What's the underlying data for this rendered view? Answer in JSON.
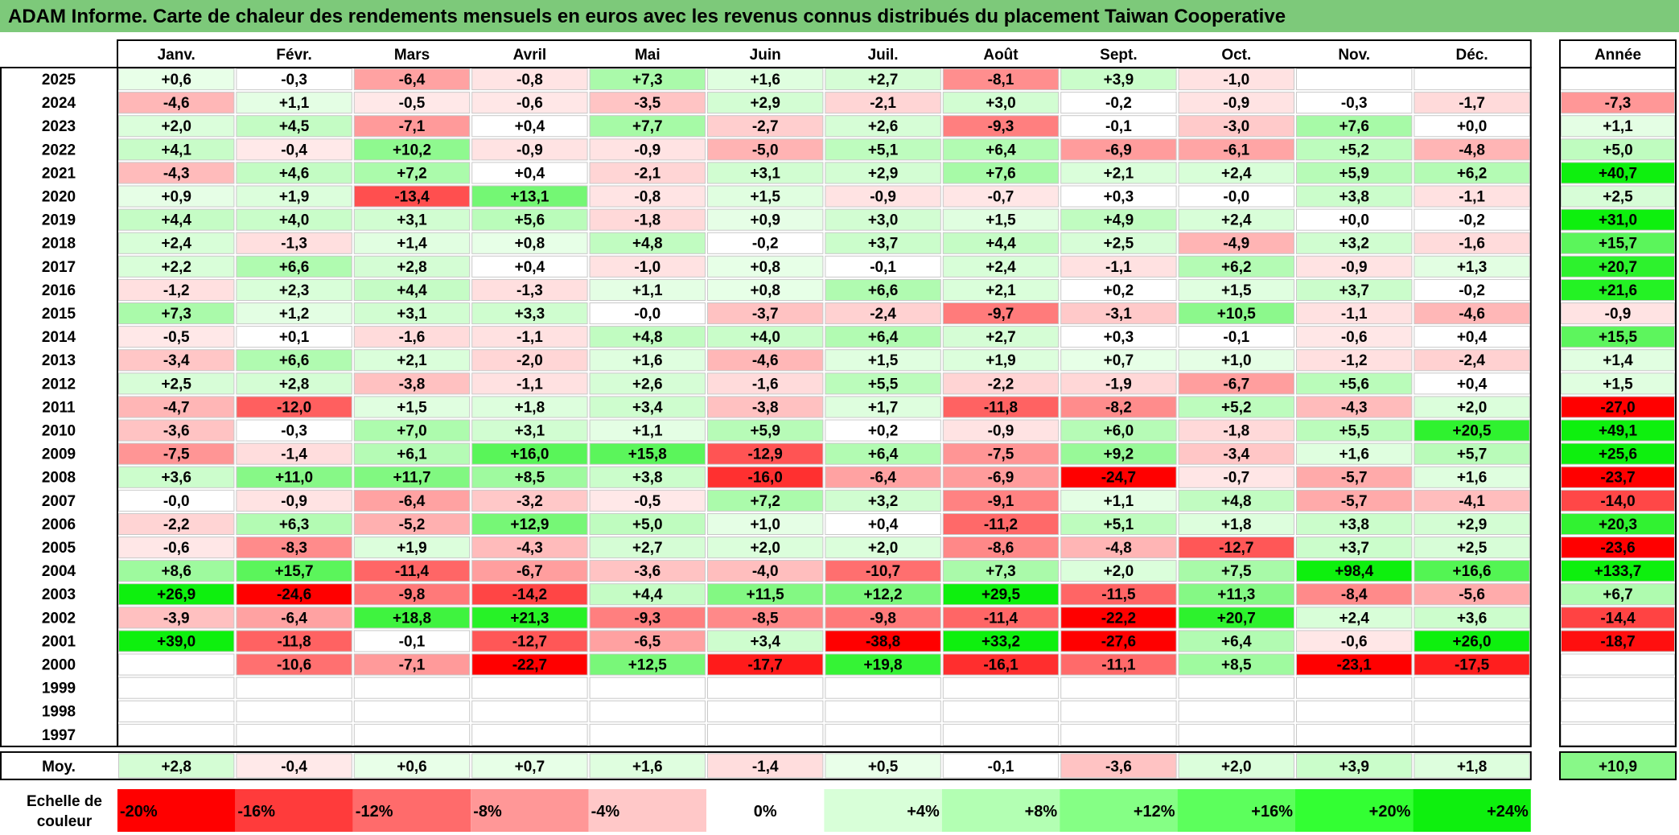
{
  "title": "ADAM Informe. Carte de chaleur des rendements mensuels en euros avec les revenus connus distribués du placement Taiwan Cooperative",
  "chart_data": {
    "type": "heatmap",
    "title": "ADAM Informe. Carte de chaleur des rendements mensuels en euros avec les revenus connus distribués du placement Taiwan Cooperative",
    "columns": [
      "Janv.",
      "Févr.",
      "Mars",
      "Avril",
      "Mai",
      "Juin",
      "Juil.",
      "Août",
      "Sept.",
      "Oct.",
      "Nov.",
      "Déc."
    ],
    "year_column_label": "Année",
    "rows": [
      {
        "year": "2025",
        "values": [
          "+0,6",
          "-0,3",
          "-6,4",
          "-0,8",
          "+7,3",
          "+1,6",
          "+2,7",
          "-8,1",
          "+3,9",
          "-1,0",
          "",
          ""
        ],
        "annual": ""
      },
      {
        "year": "2024",
        "values": [
          "-4,6",
          "+1,1",
          "-0,5",
          "-0,6",
          "-3,5",
          "+2,9",
          "-2,1",
          "+3,0",
          "-0,2",
          "-0,9",
          "-0,3",
          "-1,7"
        ],
        "annual": "-7,3"
      },
      {
        "year": "2023",
        "values": [
          "+2,0",
          "+4,5",
          "-7,1",
          "+0,4",
          "+7,7",
          "-2,7",
          "+2,6",
          "-9,3",
          "-0,1",
          "-3,0",
          "+7,6",
          "+0,0"
        ],
        "annual": "+1,1"
      },
      {
        "year": "2022",
        "values": [
          "+4,1",
          "-0,4",
          "+10,2",
          "-0,9",
          "-0,9",
          "-5,0",
          "+5,1",
          "+6,4",
          "-6,9",
          "-6,1",
          "+5,2",
          "-4,8"
        ],
        "annual": "+5,0"
      },
      {
        "year": "2021",
        "values": [
          "-4,3",
          "+4,6",
          "+7,2",
          "+0,4",
          "-2,1",
          "+3,1",
          "+2,9",
          "+7,6",
          "+2,1",
          "+2,4",
          "+5,9",
          "+6,2"
        ],
        "annual": "+40,7"
      },
      {
        "year": "2020",
        "values": [
          "+0,9",
          "+1,9",
          "-13,4",
          "+13,1",
          "-0,8",
          "+1,5",
          "-0,9",
          "-0,7",
          "+0,3",
          "-0,0",
          "+3,8",
          "-1,1"
        ],
        "annual": "+2,5"
      },
      {
        "year": "2019",
        "values": [
          "+4,4",
          "+4,0",
          "+3,1",
          "+5,6",
          "-1,8",
          "+0,9",
          "+3,0",
          "+1,5",
          "+4,9",
          "+2,4",
          "+0,0",
          "-0,2"
        ],
        "annual": "+31,0"
      },
      {
        "year": "2018",
        "values": [
          "+2,4",
          "-1,3",
          "+1,4",
          "+0,8",
          "+4,8",
          "-0,2",
          "+3,7",
          "+4,4",
          "+2,5",
          "-4,9",
          "+3,2",
          "-1,6"
        ],
        "annual": "+15,7"
      },
      {
        "year": "2017",
        "values": [
          "+2,2",
          "+6,6",
          "+2,8",
          "+0,4",
          "-1,0",
          "+0,8",
          "-0,1",
          "+2,4",
          "-1,1",
          "+6,2",
          "-0,9",
          "+1,3"
        ],
        "annual": "+20,7"
      },
      {
        "year": "2016",
        "values": [
          "-1,2",
          "+2,3",
          "+4,4",
          "-1,3",
          "+1,1",
          "+0,8",
          "+6,6",
          "+2,1",
          "+0,2",
          "+1,5",
          "+3,7",
          "-0,2"
        ],
        "annual": "+21,6"
      },
      {
        "year": "2015",
        "values": [
          "+7,3",
          "+1,2",
          "+3,1",
          "+3,3",
          "-0,0",
          "-3,7",
          "-2,4",
          "-9,7",
          "-3,1",
          "+10,5",
          "-1,1",
          "-4,6"
        ],
        "annual": "-0,9"
      },
      {
        "year": "2014",
        "values": [
          "-0,5",
          "+0,1",
          "-1,6",
          "-1,1",
          "+4,8",
          "+4,0",
          "+6,4",
          "+2,7",
          "+0,3",
          "-0,1",
          "-0,6",
          "+0,4"
        ],
        "annual": "+15,5"
      },
      {
        "year": "2013",
        "values": [
          "-3,4",
          "+6,6",
          "+2,1",
          "-2,0",
          "+1,6",
          "-4,6",
          "+1,5",
          "+1,9",
          "+0,7",
          "+1,0",
          "-1,2",
          "-2,4"
        ],
        "annual": "+1,4"
      },
      {
        "year": "2012",
        "values": [
          "+2,5",
          "+2,8",
          "-3,8",
          "-1,1",
          "+2,6",
          "-1,6",
          "+5,5",
          "-2,2",
          "-1,9",
          "-6,7",
          "+5,6",
          "+0,4"
        ],
        "annual": "+1,5"
      },
      {
        "year": "2011",
        "values": [
          "-4,7",
          "-12,0",
          "+1,5",
          "+1,8",
          "+3,4",
          "-3,8",
          "+1,7",
          "-11,8",
          "-8,2",
          "+5,2",
          "-4,3",
          "+2,0"
        ],
        "annual": "-27,0"
      },
      {
        "year": "2010",
        "values": [
          "-3,6",
          "-0,3",
          "+7,0",
          "+3,1",
          "+1,1",
          "+5,9",
          "+0,2",
          "-0,9",
          "+6,0",
          "-1,8",
          "+5,5",
          "+20,5"
        ],
        "annual": "+49,1"
      },
      {
        "year": "2009",
        "values": [
          "-7,5",
          "-1,4",
          "+6,1",
          "+16,0",
          "+15,8",
          "-12,9",
          "+6,4",
          "-7,5",
          "+9,2",
          "-3,4",
          "+1,6",
          "+5,7"
        ],
        "annual": "+25,6"
      },
      {
        "year": "2008",
        "values": [
          "+3,6",
          "+11,0",
          "+11,7",
          "+8,5",
          "+3,8",
          "-16,0",
          "-6,4",
          "-6,9",
          "-24,7",
          "-0,7",
          "-5,7",
          "+1,6"
        ],
        "annual": "-23,7"
      },
      {
        "year": "2007",
        "values": [
          "-0,0",
          "-0,9",
          "-6,4",
          "-3,2",
          "-0,5",
          "+7,2",
          "+3,2",
          "-9,1",
          "+1,1",
          "+4,8",
          "-5,7",
          "-4,1"
        ],
        "annual": "-14,0"
      },
      {
        "year": "2006",
        "values": [
          "-2,2",
          "+6,3",
          "-5,2",
          "+12,9",
          "+5,0",
          "+1,0",
          "+0,4",
          "-11,2",
          "+5,1",
          "+1,8",
          "+3,8",
          "+2,9"
        ],
        "annual": "+20,3"
      },
      {
        "year": "2005",
        "values": [
          "-0,6",
          "-8,3",
          "+1,9",
          "-4,3",
          "+2,7",
          "+2,0",
          "+2,0",
          "-8,6",
          "-4,8",
          "-12,7",
          "+3,7",
          "+2,5"
        ],
        "annual": "-23,6"
      },
      {
        "year": "2004",
        "values": [
          "+8,6",
          "+15,7",
          "-11,4",
          "-6,7",
          "-3,6",
          "-4,0",
          "-10,7",
          "+7,3",
          "+2,0",
          "+7,5",
          "+98,4",
          "+16,6"
        ],
        "annual": "+133,7"
      },
      {
        "year": "2003",
        "values": [
          "+26,9",
          "-24,6",
          "-9,8",
          "-14,2",
          "+4,4",
          "+11,5",
          "+12,2",
          "+29,5",
          "-11,5",
          "+11,3",
          "-8,4",
          "-5,6"
        ],
        "annual": "+6,7"
      },
      {
        "year": "2002",
        "values": [
          "-3,9",
          "-6,4",
          "+18,8",
          "+21,3",
          "-9,3",
          "-8,5",
          "-9,8",
          "-11,4",
          "-22,2",
          "+20,7",
          "+2,4",
          "+3,6"
        ],
        "annual": "-14,4"
      },
      {
        "year": "2001",
        "values": [
          "+39,0",
          "-11,8",
          "-0,1",
          "-12,7",
          "-6,5",
          "+3,4",
          "-38,8",
          "+33,2",
          "-27,6",
          "+6,4",
          "-0,6",
          "+26,0"
        ],
        "annual": "-18,7"
      },
      {
        "year": "2000",
        "values": [
          "",
          "-10,6",
          "-7,1",
          "-22,7",
          "+12,5",
          "-17,7",
          "+19,8",
          "-16,1",
          "-11,1",
          "+8,5",
          "-23,1",
          "-17,5"
        ],
        "annual": ""
      },
      {
        "year": "1999",
        "values": [
          "",
          "",
          "",
          "",
          "",
          "",
          "",
          "",
          "",
          "",
          "",
          ""
        ],
        "annual": ""
      },
      {
        "year": "1998",
        "values": [
          "",
          "",
          "",
          "",
          "",
          "",
          "",
          "",
          "",
          "",
          "",
          ""
        ],
        "annual": ""
      },
      {
        "year": "1997",
        "values": [
          "",
          "",
          "",
          "",
          "",
          "",
          "",
          "",
          "",
          "",
          "",
          ""
        ],
        "annual": ""
      }
    ],
    "average": {
      "label": "Moy.",
      "values": [
        "+2,8",
        "-0,4",
        "+0,6",
        "+0,7",
        "+1,6",
        "-1,4",
        "+0,5",
        "-0,1",
        "-3,6",
        "+2,0",
        "+3,9",
        "+1,8"
      ],
      "annual": "+10,9"
    },
    "color_scale": {
      "label_line1": "Echelle de",
      "label_line2": "couleur",
      "steps": [
        {
          "label": "-20%",
          "value": -20,
          "color": "#ff0000"
        },
        {
          "label": "-16%",
          "value": -16,
          "color": "#ff3b3b"
        },
        {
          "label": "-12%",
          "value": -12,
          "color": "#ff6b6b"
        },
        {
          "label": "-8%",
          "value": -8,
          "color": "#ff9797"
        },
        {
          "label": "-4%",
          "value": -4,
          "color": "#ffc8c8"
        },
        {
          "label": "0%",
          "value": 0,
          "color": "#ffffff"
        },
        {
          "label": "+4%",
          "value": 4,
          "color": "#d8ffd8"
        },
        {
          "label": "+8%",
          "value": 8,
          "color": "#b3ffb3"
        },
        {
          "label": "+12%",
          "value": 12,
          "color": "#85ff85"
        },
        {
          "label": "+16%",
          "value": 16,
          "color": "#5cff5c"
        },
        {
          "label": "+20%",
          "value": 20,
          "color": "#33ff33"
        },
        {
          "label": "+24%",
          "value": 24,
          "color": "#0ef00e"
        }
      ]
    },
    "colors": {
      "title_bar": "#7dc97a",
      "negative_max": "#ff0000",
      "positive_max": "#00ee00",
      "neutral": "#ffffff"
    }
  }
}
